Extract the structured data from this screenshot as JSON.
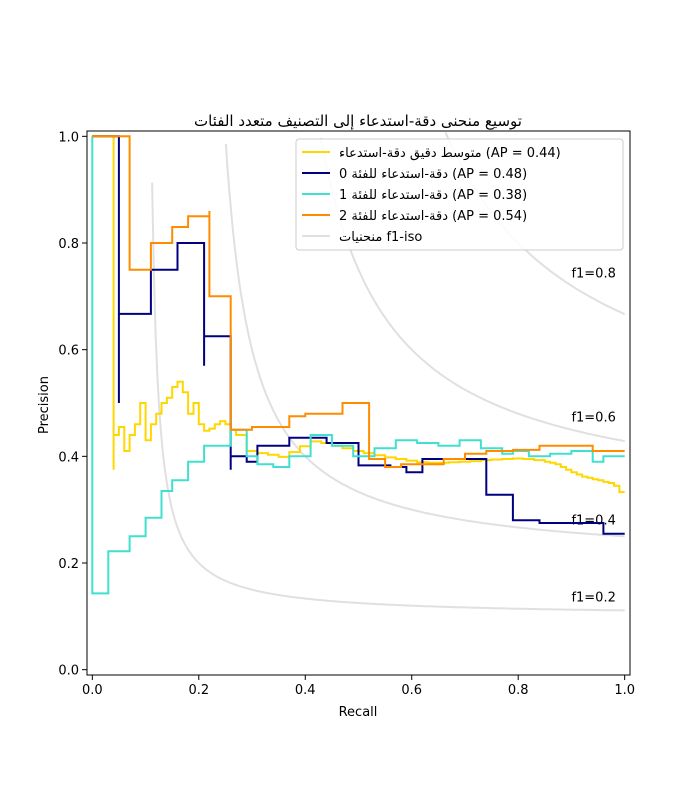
{
  "chart_data": {
    "type": "line",
    "title": "توسيع منحنى دقة-استدعاء إلى التصنيف متعدد الفئات",
    "xlabel": "Recall",
    "ylabel": "Precision",
    "xlim": [
      -0.01,
      1.01
    ],
    "ylim": [
      -0.01,
      1.01
    ],
    "x_ticks": [
      "0.0",
      "0.2",
      "0.4",
      "0.6",
      "0.8",
      "1.0"
    ],
    "y_ticks": [
      "0.0",
      "0.2",
      "0.4",
      "0.6",
      "0.8",
      "1.0"
    ],
    "grid": false,
    "legend_position": "top-right",
    "iso_f1_levels": [
      0.2,
      0.4,
      0.6,
      0.8
    ],
    "iso_f1_labels": [
      "f1=0.2",
      "f1=0.4",
      "f1=0.6",
      "f1=0.8"
    ],
    "iso_f1_color": "#e0e0e0",
    "iso_legend": "منحنيات f1-iso",
    "series": [
      {
        "name": "متوسط دقيق دقة-استدعاء (AP = 0.44)",
        "color": "#ffd700",
        "recall": [
          1.0,
          0.99,
          0.98,
          0.97,
          0.96,
          0.95,
          0.94,
          0.93,
          0.92,
          0.91,
          0.9,
          0.89,
          0.88,
          0.87,
          0.86,
          0.85,
          0.83,
          0.81,
          0.79,
          0.77,
          0.75,
          0.73,
          0.71,
          0.69,
          0.67,
          0.65,
          0.63,
          0.61,
          0.59,
          0.57,
          0.55,
          0.53,
          0.51,
          0.49,
          0.47,
          0.45,
          0.43,
          0.41,
          0.39,
          0.37,
          0.35,
          0.33,
          0.31,
          0.29,
          0.27,
          0.26,
          0.25,
          0.24,
          0.23,
          0.22,
          0.21,
          0.2,
          0.19,
          0.18,
          0.17,
          0.16,
          0.15,
          0.14,
          0.13,
          0.12,
          0.11,
          0.1,
          0.09,
          0.08,
          0.07,
          0.06,
          0.05,
          0.04,
          0.04,
          0.0
        ],
        "precision": [
          0.333,
          0.345,
          0.35,
          0.352,
          0.355,
          0.357,
          0.36,
          0.362,
          0.366,
          0.37,
          0.375,
          0.38,
          0.385,
          0.388,
          0.39,
          0.393,
          0.395,
          0.396,
          0.395,
          0.394,
          0.393,
          0.391,
          0.39,
          0.389,
          0.388,
          0.388,
          0.389,
          0.392,
          0.395,
          0.398,
          0.402,
          0.406,
          0.41,
          0.415,
          0.42,
          0.425,
          0.428,
          0.419,
          0.408,
          0.399,
          0.403,
          0.406,
          0.41,
          0.44,
          0.45,
          0.46,
          0.466,
          0.46,
          0.452,
          0.448,
          0.46,
          0.5,
          0.48,
          0.52,
          0.54,
          0.53,
          0.51,
          0.5,
          0.48,
          0.46,
          0.43,
          0.5,
          0.46,
          0.44,
          0.41,
          0.455,
          0.44,
          0.375,
          1.0,
          1.0
        ]
      },
      {
        "name": "دقة-استدعاء للفئة 0 (AP = 0.48)",
        "color": "#000080",
        "recall": [
          1.0,
          0.96,
          0.84,
          0.79,
          0.74,
          0.62,
          0.59,
          0.56,
          0.5,
          0.44,
          0.37,
          0.31,
          0.29,
          0.26,
          0.26,
          0.21,
          0.21,
          0.16,
          0.11,
          0.05,
          0.05,
          0.0
        ],
        "precision": [
          0.255,
          0.275,
          0.28,
          0.328,
          0.395,
          0.37,
          0.38,
          0.383,
          0.425,
          0.435,
          0.42,
          0.39,
          0.4,
          0.375,
          0.625,
          0.57,
          0.8,
          0.75,
          0.667,
          0.5,
          1.0,
          1.0
        ]
      },
      {
        "name": "دقة-استدعاء للفئة 1 (AP = 0.38)",
        "color": "#40e0d0",
        "recall": [
          1.0,
          0.96,
          0.94,
          0.9,
          0.86,
          0.82,
          0.79,
          0.77,
          0.73,
          0.69,
          0.65,
          0.61,
          0.57,
          0.53,
          0.49,
          0.45,
          0.41,
          0.37,
          0.34,
          0.31,
          0.29,
          0.26,
          0.24,
          0.21,
          0.18,
          0.15,
          0.13,
          0.1,
          0.07,
          0.03,
          0.0
        ],
        "precision": [
          0.4,
          0.39,
          0.41,
          0.405,
          0.4,
          0.41,
          0.405,
          0.415,
          0.43,
          0.42,
          0.425,
          0.43,
          0.415,
          0.4,
          0.42,
          0.44,
          0.4,
          0.38,
          0.385,
          0.4,
          0.45,
          0.42,
          0.42,
          0.39,
          0.355,
          0.335,
          0.285,
          0.25,
          0.222,
          0.143,
          1.0
        ]
      },
      {
        "name": "دقة-استدعاء للفئة 2 (AP = 0.54)",
        "color": "#ff8c00",
        "recall": [
          1.0,
          0.94,
          0.89,
          0.84,
          0.79,
          0.74,
          0.7,
          0.66,
          0.62,
          0.58,
          0.55,
          0.52,
          0.52,
          0.47,
          0.4,
          0.37,
          0.3,
          0.26,
          0.26,
          0.22,
          0.22,
          0.18,
          0.15,
          0.11,
          0.07,
          0.07,
          0.0
        ],
        "precision": [
          0.41,
          0.42,
          0.42,
          0.412,
          0.41,
          0.405,
          0.395,
          0.385,
          0.385,
          0.38,
          0.395,
          0.4,
          0.5,
          0.48,
          0.475,
          0.455,
          0.45,
          0.47,
          0.7,
          0.86,
          0.85,
          0.83,
          0.8,
          0.75,
          0.75,
          1.0,
          1.0
        ]
      }
    ]
  }
}
